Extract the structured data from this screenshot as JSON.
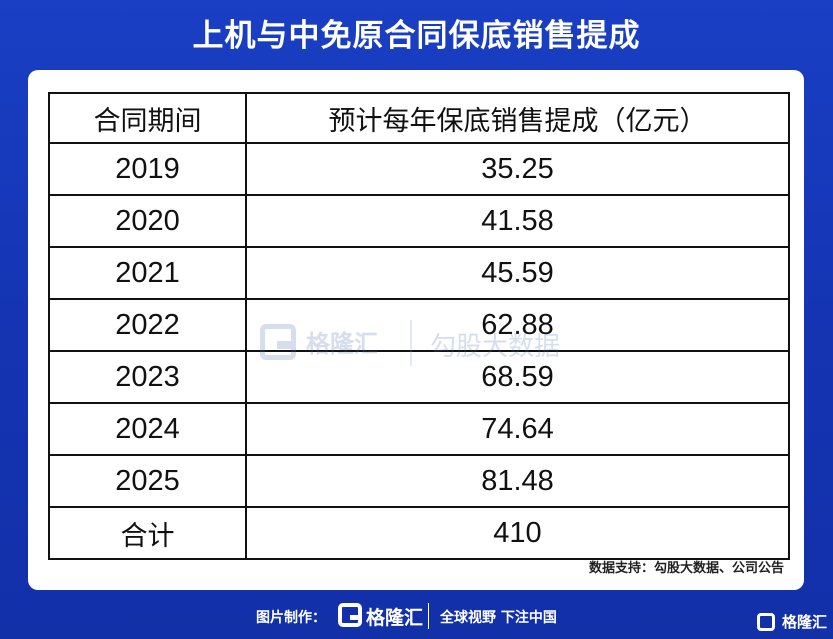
{
  "title": "上机与中免原合同保底销售提成",
  "table": {
    "headers": [
      "合同期间",
      "预计每年保底销售提成（亿元）"
    ],
    "rows": [
      {
        "period": "2019",
        "value": "35.25"
      },
      {
        "period": "2020",
        "value": "41.58"
      },
      {
        "period": "2021",
        "value": "45.59"
      },
      {
        "period": "2022",
        "value": "62.88"
      },
      {
        "period": "2023",
        "value": "68.59"
      },
      {
        "period": "2024",
        "value": "74.64"
      },
      {
        "period": "2025",
        "value": "81.48"
      }
    ],
    "total": {
      "label": "合计",
      "value": "410"
    }
  },
  "source": "数据支持：勾股大数据、公司公告",
  "watermark": {
    "brand": "格隆汇",
    "partner": "勾股大数据"
  },
  "footer": {
    "label": "图片制作：",
    "brand": "格隆汇",
    "slogan": "全球视野 下注中国",
    "corner_brand": "格隆汇"
  },
  "colors": {
    "background": "#1434b3",
    "card": "#ffffff",
    "border": "#111111"
  }
}
